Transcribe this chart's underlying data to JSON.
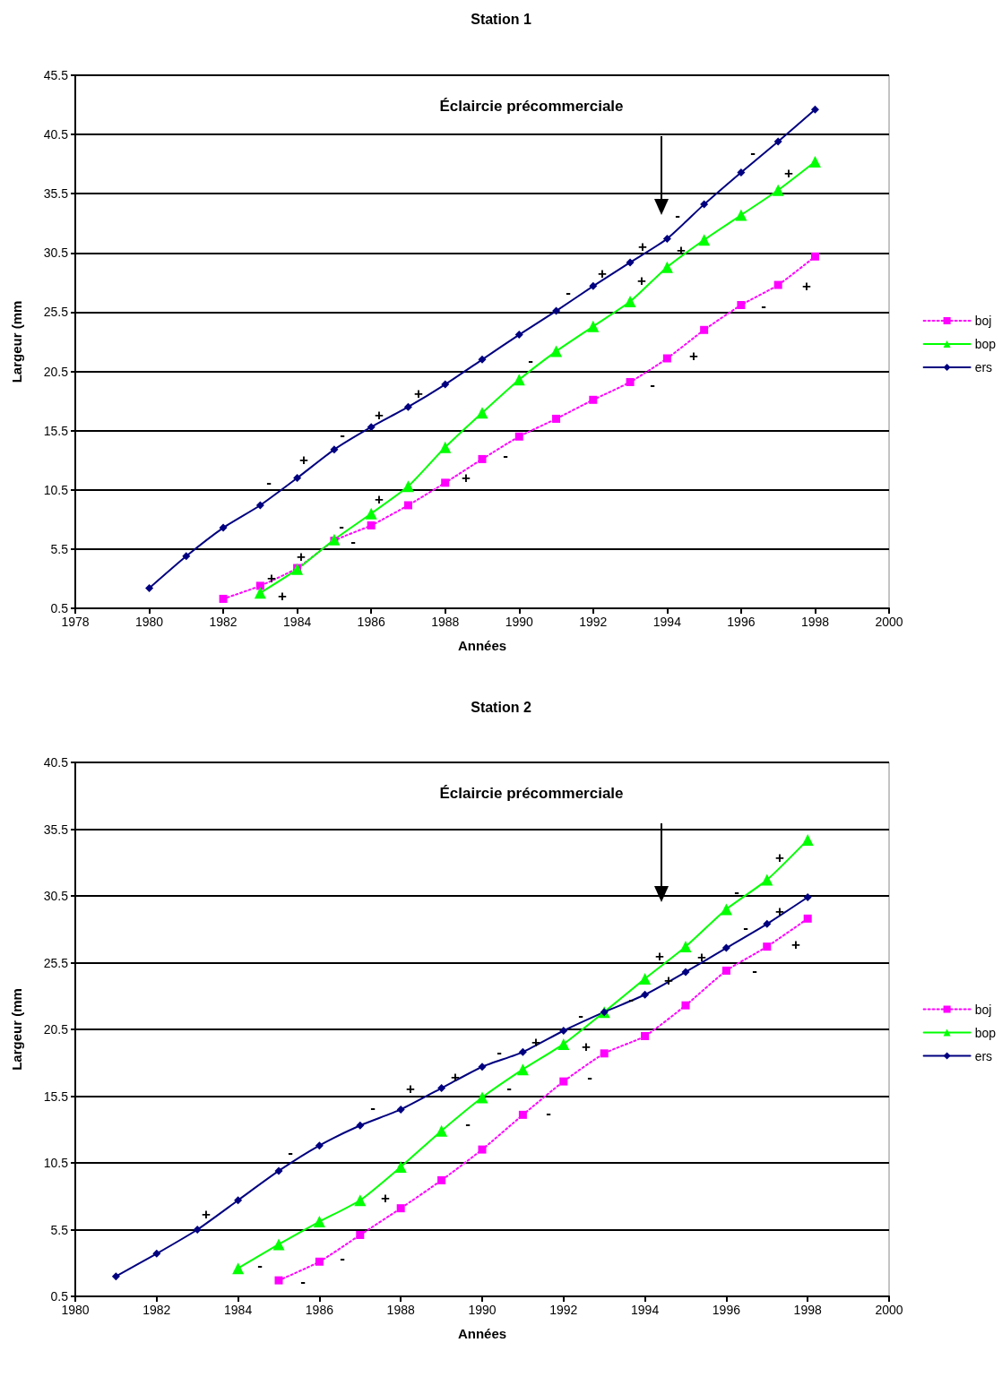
{
  "chart_data": [
    {
      "type": "line",
      "title": "Station 1",
      "xlabel": "Années",
      "ylabel": "Largeur (mm",
      "xlim": [
        1978,
        2000
      ],
      "xticks": [
        1978,
        1980,
        1982,
        1984,
        1986,
        1988,
        1990,
        1992,
        1994,
        1996,
        1998,
        2000
      ],
      "ylim": [
        0.5,
        45.5
      ],
      "yticks": [
        0.5,
        5.5,
        10.5,
        15.5,
        20.5,
        25.5,
        30.5,
        35.5,
        40.5,
        45.5
      ],
      "grid": "y",
      "legend": "right",
      "series": [
        {
          "name": "boj",
          "color": "#ff00ff",
          "marker": "square",
          "line_style": "dotted",
          "x": [
            1982,
            1983,
            1984,
            1985,
            1986,
            1987,
            1988,
            1989,
            1990,
            1991,
            1992,
            1993,
            1994,
            1995,
            1996,
            1997,
            1998
          ],
          "values": [
            1.3,
            2.4,
            3.9,
            6.2,
            7.5,
            9.2,
            11.1,
            13.1,
            15.0,
            16.5,
            18.1,
            19.6,
            21.6,
            24.0,
            26.1,
            27.8,
            30.2
          ]
        },
        {
          "name": "bop",
          "color": "#00ff00",
          "marker": "triangle",
          "line_style": "solid",
          "x": [
            1983,
            1984,
            1985,
            1986,
            1987,
            1988,
            1989,
            1990,
            1991,
            1992,
            1993,
            1994,
            1995,
            1996,
            1997,
            1998
          ],
          "values": [
            1.8,
            3.8,
            6.3,
            8.5,
            10.8,
            14.1,
            17.0,
            19.8,
            22.2,
            24.3,
            26.4,
            29.3,
            31.6,
            33.7,
            35.8,
            38.2
          ]
        },
        {
          "name": "ers",
          "color": "#000080",
          "marker": "diamond",
          "line_style": "solid",
          "x": [
            1980,
            1981,
            1982,
            1983,
            1984,
            1985,
            1986,
            1987,
            1988,
            1989,
            1990,
            1991,
            1992,
            1993,
            1994,
            1995,
            1996,
            1997,
            1998
          ],
          "values": [
            2.2,
            4.9,
            7.3,
            9.2,
            11.5,
            13.9,
            15.8,
            17.5,
            19.4,
            21.5,
            23.6,
            25.6,
            27.7,
            29.7,
            31.7,
            34.6,
            37.3,
            39.9,
            42.6
          ]
        }
      ],
      "annotations": [
        "Éclaircie précommerciale",
        "-",
        "+",
        "-",
        "+",
        "+",
        "+",
        "+",
        "+",
        "-",
        "-",
        "+",
        "-",
        "+",
        "-",
        "-",
        "+",
        "+",
        "+",
        "-",
        "+",
        "-",
        "+",
        "-",
        "+",
        "-",
        "+"
      ]
    },
    {
      "type": "line",
      "title": "Station 2",
      "xlabel": "Années",
      "ylabel": "Largeur (mm",
      "xlim": [
        1980,
        2000
      ],
      "xticks": [
        1980,
        1982,
        1984,
        1986,
        1988,
        1990,
        1992,
        1994,
        1996,
        1998,
        2000
      ],
      "ylim": [
        0.5,
        40.5
      ],
      "yticks": [
        0.5,
        5.5,
        10.5,
        15.5,
        20.5,
        25.5,
        30.5,
        35.5,
        40.5
      ],
      "grid": "y",
      "legend": "right",
      "series": [
        {
          "name": "boj",
          "color": "#ff00ff",
          "marker": "square",
          "line_style": "dotted",
          "x": [
            1985,
            1986,
            1987,
            1988,
            1989,
            1990,
            1991,
            1992,
            1993,
            1994,
            1995,
            1996,
            1997,
            1998
          ],
          "values": [
            1.7,
            3.1,
            5.1,
            7.1,
            9.2,
            11.5,
            14.1,
            16.6,
            18.7,
            20.0,
            22.3,
            24.9,
            26.7,
            28.8
          ]
        },
        {
          "name": "bop",
          "color": "#00ff00",
          "marker": "triangle",
          "line_style": "solid",
          "x": [
            1984,
            1985,
            1986,
            1987,
            1988,
            1989,
            1990,
            1991,
            1992,
            1993,
            1994,
            1995,
            1996,
            1997,
            1998
          ],
          "values": [
            2.6,
            4.4,
            6.1,
            7.7,
            10.2,
            12.9,
            15.4,
            17.5,
            19.4,
            21.8,
            24.3,
            26.7,
            29.5,
            31.7,
            34.7
          ]
        },
        {
          "name": "ers",
          "color": "#000080",
          "marker": "diamond",
          "line_style": "solid",
          "x": [
            1981,
            1982,
            1983,
            1984,
            1985,
            1986,
            1987,
            1988,
            1989,
            1990,
            1991,
            1992,
            1993,
            1994,
            1995,
            1996,
            1997,
            1998
          ],
          "values": [
            2.0,
            3.7,
            5.5,
            7.7,
            9.9,
            11.8,
            13.3,
            14.5,
            16.1,
            17.7,
            18.8,
            20.4,
            21.8,
            23.1,
            24.8,
            26.6,
            28.4,
            30.4
          ]
        }
      ],
      "annotations": [
        "Éclaircie précommerciale",
        "+",
        "-",
        "-",
        "-",
        "-",
        "-",
        "+",
        "+",
        "-",
        "-",
        "+",
        "-",
        "+",
        "-",
        "-",
        "+",
        "-",
        "-",
        "+",
        "+",
        "+",
        "-",
        "-",
        "-",
        "+",
        "+",
        "+"
      ]
    }
  ]
}
